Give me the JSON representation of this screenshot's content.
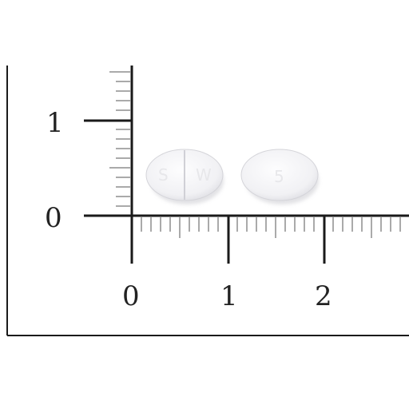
{
  "photo": {
    "subject": "two-white-oval-tablets",
    "background_color": "#ffffff",
    "ruler_color": "#1a1a1a"
  },
  "ruler": {
    "vertical_labels": [
      "1",
      "0"
    ],
    "horizontal_labels": [
      "0",
      "1",
      "2"
    ]
  },
  "tablets": [
    {
      "imprint_left": "S",
      "imprint_right": "W",
      "scored": true
    },
    {
      "imprint": "5",
      "scored": false
    }
  ]
}
